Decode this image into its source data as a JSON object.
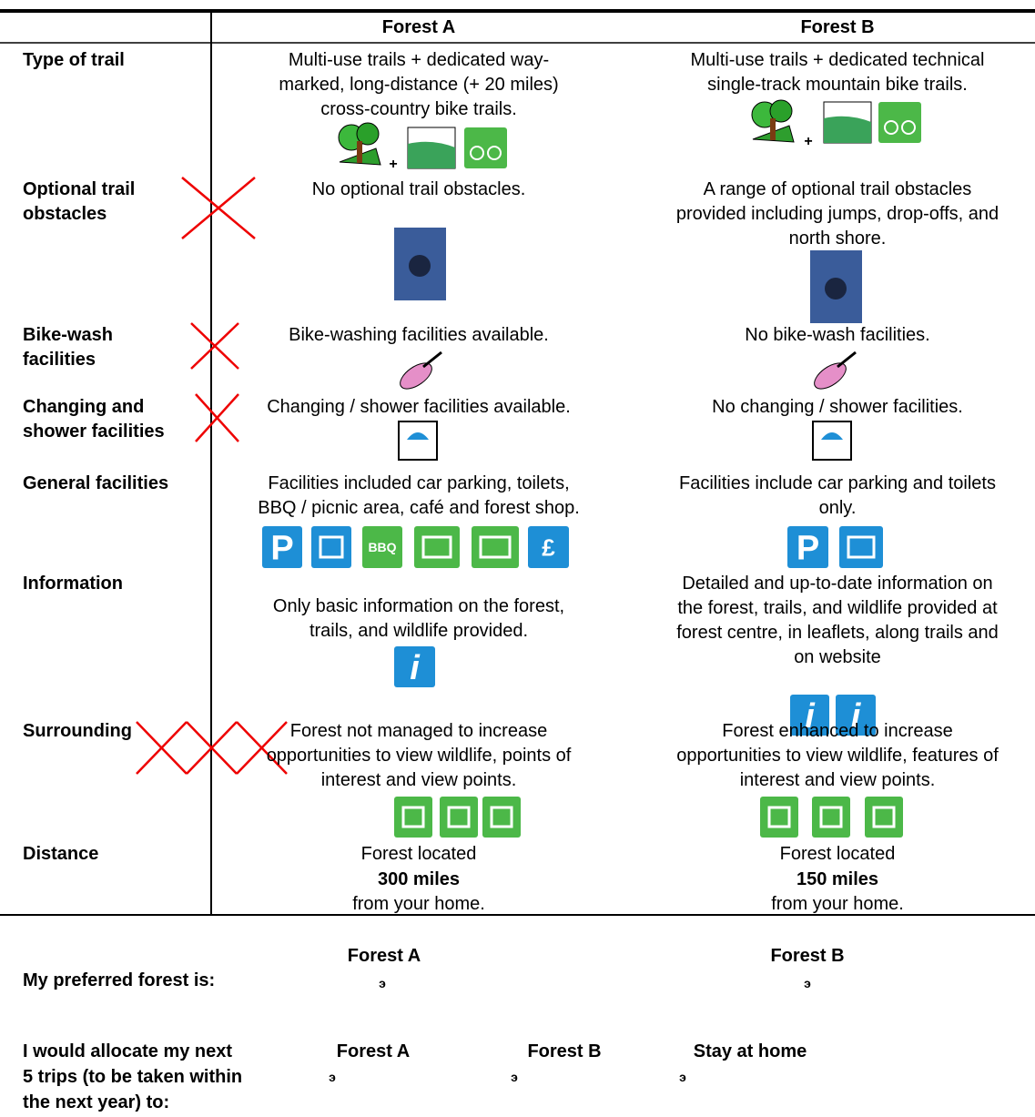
{
  "header": {
    "columns": [
      "Forest A",
      "Forest B"
    ]
  },
  "rows": [
    {
      "label": [
        "Type of trail"
      ],
      "forest_a": [
        "Multi-use trails + dedicated way-",
        "marked, long-distance (+ 20 miles)",
        "cross-country bike trails."
      ],
      "forest_b": [
        "Multi-use trails + dedicated technical",
        "single-track mountain bike trails."
      ],
      "icon_join": "+"
    },
    {
      "label": [
        "Optional trail",
        "obstacles"
      ],
      "forest_a": [
        "No optional trail obstacles."
      ],
      "forest_b": [
        "A range of optional trail obstacles",
        "provided including jumps, drop-offs, and",
        "north shore."
      ]
    },
    {
      "label": [
        "Bike-wash",
        "facilities"
      ],
      "forest_a": [
        "Bike-washing facilities available."
      ],
      "forest_b": [
        "No bike-wash facilities."
      ]
    },
    {
      "label": [
        "Changing and",
        "shower facilities"
      ],
      "forest_a": [
        "Changing / shower facilities available."
      ],
      "forest_b": [
        "No changing / shower facilities."
      ]
    },
    {
      "label": [
        "General facilities"
      ],
      "forest_a": [
        "Facilities included car parking, toilets,",
        "BBQ / picnic area, café and forest shop."
      ],
      "forest_b": [
        "Facilities include car parking and toilets",
        "only."
      ]
    },
    {
      "label": [
        "Information"
      ],
      "forest_a": [
        "Only basic information on the forest,",
        "trails, and wildlife provided."
      ],
      "forest_b": [
        "Detailed and up-to-date information on",
        "the forest, trails, and wildlife provided at",
        "forest centre, in leaflets, along trails and",
        "on website"
      ]
    },
    {
      "label": [
        "Surrounding"
      ],
      "forest_a": [
        "Forest not managed to increase",
        "opportunities to view wildlife, points of",
        "interest and view points."
      ],
      "forest_b": [
        "Forest enhanced to increase",
        "opportunities to view wildlife, features of",
        "interest and view points."
      ]
    },
    {
      "label": [
        "Distance"
      ],
      "forest_a": {
        "before": "Forest located",
        "distance": "300 miles",
        "after": "from your home."
      },
      "forest_b": {
        "before": "Forest located",
        "distance": "150 miles",
        "after": "from your home."
      }
    }
  ],
  "icon_text": {
    "parking": "P",
    "bbq": "BBQ",
    "info": "i",
    "shop": "£"
  },
  "choice": {
    "columns": [
      "Forest A",
      "Forest B"
    ],
    "prompt": "My preferred forest is:",
    "box": "э"
  },
  "allocation": {
    "prompt": [
      "I would allocate my next",
      "5 trips (to be taken within",
      "the next year) to:"
    ],
    "options": [
      "Forest A",
      "Forest B",
      "Stay at home"
    ],
    "box": "э"
  }
}
